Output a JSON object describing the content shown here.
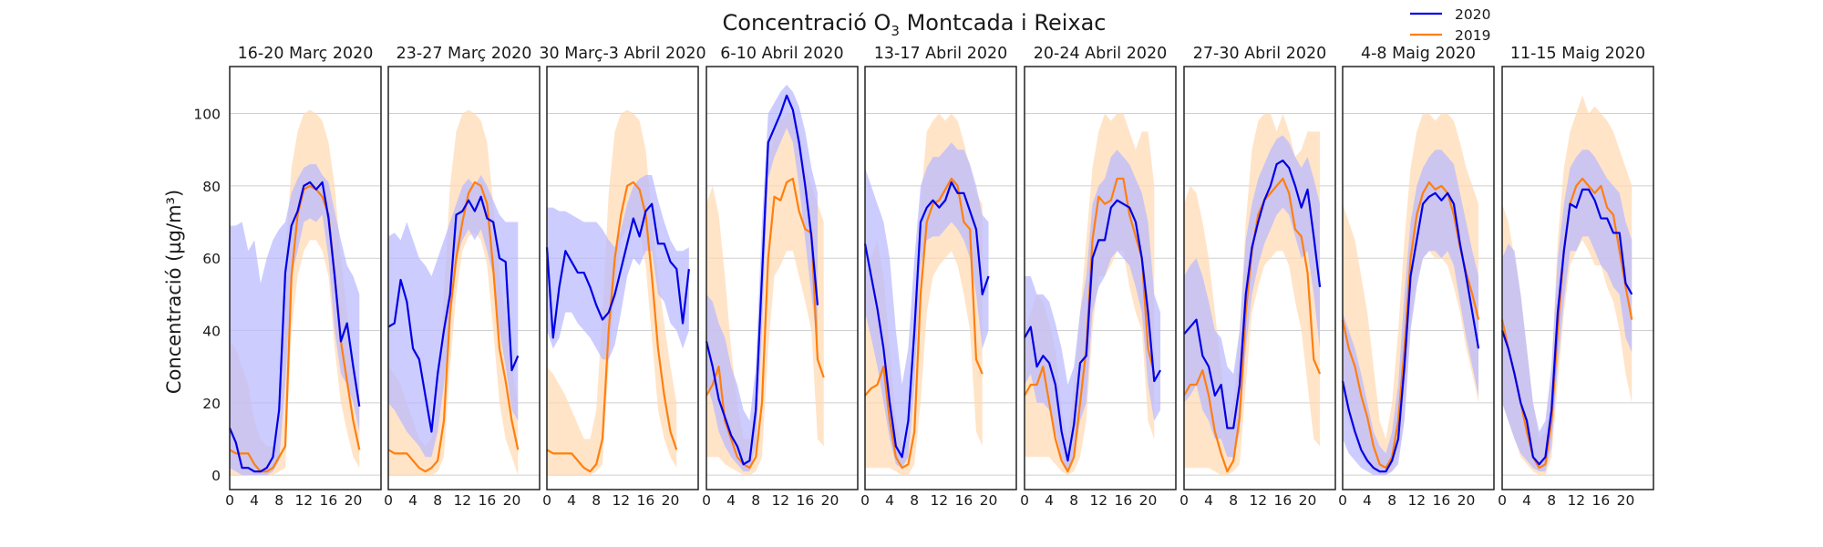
{
  "title_main": "Concentració O",
  "title_sub": "3",
  "title_rest": " Montcada i Reixac",
  "ylabel": "Concentració (µg/m³)",
  "legend": [
    {
      "label": "2020",
      "color": "#0000e6"
    },
    {
      "label": "2019",
      "color": "#ff7f0e"
    }
  ],
  "colors": {
    "s2020": "#0000e6",
    "s2019": "#ff7f0e",
    "band2020": "#b9b9ff",
    "band2019": "#ffd9b3"
  },
  "chart_data": {
    "type": "line",
    "ylim": [
      -4,
      113
    ],
    "xlim": [
      0,
      24.5
    ],
    "yticks": [
      0,
      20,
      40,
      60,
      80,
      100
    ],
    "xticks": [
      0,
      4,
      8,
      12,
      16,
      20
    ],
    "grid": "horizontal",
    "legend_position": "top-right",
    "hours": [
      0,
      1,
      2,
      3,
      4,
      5,
      6,
      7,
      8,
      9,
      10,
      11,
      12,
      13,
      14,
      15,
      16,
      17,
      18,
      19,
      20,
      21,
      22,
      23
    ],
    "panels": [
      {
        "title": "16-20 Març 2020",
        "s2020": [
          13,
          9,
          2,
          2,
          1,
          1,
          2,
          5,
          18,
          56,
          69,
          73,
          80,
          81,
          79,
          81,
          71,
          55,
          37,
          42,
          30,
          19
        ],
        "s2019": [
          7,
          6,
          6,
          6,
          3,
          1,
          1,
          2,
          5,
          8,
          55,
          72,
          79,
          80,
          79,
          77,
          72,
          55,
          37,
          26,
          15,
          7
        ],
        "band2020_hi": [
          69,
          69,
          70,
          62,
          65,
          53,
          60,
          65,
          68,
          70,
          78,
          82,
          85,
          86,
          86,
          83,
          81,
          73,
          65,
          58,
          55,
          50
        ],
        "band2020_lo": [
          2,
          1,
          0,
          0,
          0,
          0,
          0,
          1,
          4,
          25,
          55,
          62,
          70,
          71,
          70,
          72,
          60,
          40,
          28,
          25,
          20,
          12
        ],
        "band2019_hi": [
          37,
          35,
          30,
          25,
          15,
          10,
          8,
          8,
          12,
          60,
          85,
          95,
          100,
          101,
          100,
          98,
          92,
          80,
          60,
          45,
          30,
          20
        ],
        "band2019_lo": [
          0,
          0,
          0,
          0,
          0,
          0,
          0,
          0,
          1,
          2,
          40,
          55,
          62,
          65,
          65,
          62,
          55,
          35,
          20,
          12,
          5,
          2
        ]
      },
      {
        "title": "23-27 Març 2020",
        "s2020": [
          41,
          42,
          54,
          48,
          35,
          32,
          22,
          12,
          28,
          40,
          50,
          72,
          73,
          76,
          73,
          77,
          71,
          70,
          60,
          59,
          29,
          33
        ],
        "s2019": [
          7,
          6,
          6,
          6,
          4,
          2,
          1,
          2,
          4,
          15,
          45,
          60,
          70,
          78,
          81,
          80,
          75,
          57,
          35,
          26,
          15,
          7
        ],
        "band2020_hi": [
          66,
          67,
          65,
          70,
          65,
          60,
          58,
          55,
          60,
          65,
          70,
          75,
          80,
          82,
          80,
          83,
          80,
          76,
          72,
          70,
          70,
          70
        ],
        "band2020_lo": [
          20,
          18,
          15,
          12,
          10,
          8,
          5,
          5,
          12,
          25,
          40,
          60,
          65,
          68,
          65,
          68,
          62,
          55,
          40,
          30,
          18,
          15
        ],
        "band2019_hi": [
          30,
          28,
          25,
          20,
          15,
          10,
          8,
          10,
          20,
          50,
          80,
          95,
          100,
          101,
          100,
          98,
          92,
          75,
          55,
          45,
          30,
          20
        ],
        "band2019_lo": [
          0,
          0,
          0,
          0,
          0,
          0,
          0,
          0,
          1,
          5,
          30,
          50,
          62,
          66,
          67,
          65,
          58,
          40,
          20,
          10,
          5,
          0
        ]
      },
      {
        "title": "30 Març-3 Abril 2020",
        "s2020": [
          63,
          38,
          52,
          62,
          59,
          56,
          56,
          52,
          47,
          43,
          45,
          50,
          57,
          64,
          71,
          66,
          73,
          75,
          64,
          64,
          59,
          57,
          42,
          57
        ],
        "s2019": [
          7,
          6,
          6,
          6,
          6,
          4,
          2,
          1,
          3,
          10,
          40,
          60,
          72,
          80,
          81,
          79,
          72,
          55,
          35,
          22,
          12,
          7
        ],
        "band2020_hi": [
          74,
          74,
          73,
          73,
          72,
          71,
          70,
          70,
          70,
          68,
          65,
          63,
          68,
          75,
          80,
          82,
          83,
          83,
          76,
          70,
          65,
          62,
          62,
          63
        ],
        "band2020_lo": [
          40,
          35,
          38,
          45,
          45,
          42,
          40,
          38,
          35,
          32,
          32,
          36,
          45,
          55,
          60,
          58,
          62,
          62,
          50,
          48,
          42,
          40,
          35,
          40
        ],
        "band2019_hi": [
          30,
          28,
          25,
          22,
          18,
          14,
          10,
          10,
          18,
          45,
          78,
          95,
          100,
          101,
          100,
          98,
          90,
          72,
          55,
          42,
          30,
          20
        ],
        "band2019_lo": [
          0,
          0,
          0,
          0,
          0,
          0,
          0,
          0,
          1,
          3,
          30,
          50,
          65,
          68,
          70,
          68,
          58,
          38,
          18,
          10,
          5,
          2
        ]
      },
      {
        "title": "6-10 Abril 2020",
        "s2020": [
          37,
          30,
          21,
          16,
          11,
          8,
          3,
          4,
          18,
          55,
          92,
          96,
          100,
          105,
          101,
          92,
          80,
          66,
          47
        ],
        "s2019": [
          22,
          25,
          30,
          15,
          10,
          5,
          3,
          2,
          5,
          20,
          60,
          77,
          76,
          81,
          82,
          73,
          68,
          67,
          32,
          27
        ],
        "band2020_hi": [
          50,
          48,
          42,
          38,
          30,
          25,
          18,
          15,
          30,
          70,
          100,
          103,
          106,
          108,
          106,
          102,
          95,
          85,
          78
        ],
        "band2020_lo": [
          25,
          20,
          12,
          8,
          5,
          3,
          1,
          1,
          8,
          40,
          82,
          88,
          92,
          96,
          92,
          80,
          65,
          50,
          35
        ],
        "band2019_hi": [
          75,
          80,
          72,
          55,
          35,
          20,
          10,
          10,
          20,
          50,
          85,
          95,
          98,
          100,
          100,
          95,
          85,
          80,
          75,
          70
        ],
        "band2019_lo": [
          5,
          5,
          5,
          3,
          2,
          1,
          0,
          0,
          1,
          5,
          35,
          55,
          58,
          62,
          62,
          55,
          48,
          40,
          10,
          8
        ]
      },
      {
        "title": "13-17 Abril 2020",
        "s2020": [
          64,
          55,
          46,
          35,
          20,
          8,
          5,
          15,
          40,
          70,
          74,
          76,
          74,
          76,
          81,
          78,
          78,
          73,
          68,
          50,
          55
        ],
        "s2019": [
          22,
          24,
          25,
          30,
          15,
          5,
          2,
          3,
          12,
          50,
          70,
          75,
          76,
          79,
          82,
          80,
          70,
          68,
          32,
          28
        ],
        "band2020_hi": [
          85,
          80,
          75,
          70,
          60,
          40,
          25,
          35,
          60,
          80,
          85,
          88,
          88,
          90,
          92,
          90,
          90,
          86,
          80,
          72,
          70
        ],
        "band2020_lo": [
          45,
          38,
          30,
          20,
          10,
          3,
          2,
          5,
          25,
          58,
          65,
          66,
          66,
          68,
          70,
          68,
          65,
          60,
          50,
          35,
          40
        ],
        "band2019_hi": [
          55,
          60,
          65,
          55,
          35,
          15,
          8,
          10,
          30,
          75,
          95,
          98,
          100,
          98,
          100,
          98,
          92,
          85,
          78,
          75
        ],
        "band2019_lo": [
          2,
          2,
          2,
          2,
          2,
          1,
          0,
          0,
          3,
          20,
          45,
          55,
          58,
          60,
          62,
          58,
          50,
          40,
          12,
          8
        ]
      },
      {
        "title": "20-24 Abril 2020",
        "s2020": [
          38,
          41,
          30,
          33,
          31,
          25,
          12,
          4,
          14,
          31,
          33,
          60,
          65,
          65,
          74,
          76,
          75,
          74,
          70,
          60,
          45,
          26,
          29
        ],
        "s2019": [
          22,
          25,
          25,
          30,
          20,
          10,
          4,
          1,
          5,
          20,
          35,
          65,
          77,
          75,
          76,
          82,
          82,
          72,
          66,
          60,
          35,
          28
        ],
        "band2020_hi": [
          55,
          55,
          50,
          50,
          48,
          42,
          35,
          25,
          30,
          45,
          55,
          75,
          80,
          82,
          88,
          90,
          88,
          86,
          82,
          78,
          70,
          50,
          45
        ],
        "band2020_lo": [
          25,
          28,
          20,
          20,
          18,
          12,
          5,
          1,
          5,
          15,
          20,
          45,
          52,
          55,
          60,
          62,
          60,
          58,
          52,
          45,
          25,
          15,
          18
        ],
        "band2019_hi": [
          40,
          45,
          50,
          48,
          42,
          35,
          18,
          10,
          25,
          45,
          65,
          85,
          95,
          100,
          98,
          100,
          100,
          95,
          90,
          95,
          95,
          80
        ],
        "band2019_lo": [
          5,
          5,
          5,
          5,
          5,
          3,
          1,
          0,
          1,
          5,
          15,
          40,
          55,
          55,
          58,
          62,
          62,
          52,
          45,
          40,
          15,
          10
        ]
      },
      {
        "title": "27-30 Abril 2020",
        "s2020": [
          39,
          41,
          43,
          33,
          30,
          22,
          25,
          13,
          13,
          25,
          50,
          63,
          70,
          76,
          80,
          86,
          87,
          85,
          80,
          74,
          79,
          66,
          52
        ],
        "s2019": [
          22,
          25,
          25,
          29,
          22,
          12,
          6,
          1,
          4,
          16,
          45,
          62,
          72,
          76,
          78,
          80,
          82,
          78,
          68,
          66,
          56,
          32,
          28
        ],
        "band2020_hi": [
          55,
          58,
          60,
          55,
          48,
          40,
          38,
          30,
          28,
          40,
          65,
          75,
          82,
          86,
          90,
          93,
          94,
          92,
          88,
          85,
          88,
          82,
          75
        ],
        "band2020_lo": [
          20,
          22,
          25,
          18,
          15,
          10,
          10,
          5,
          5,
          12,
          35,
          50,
          58,
          64,
          68,
          72,
          74,
          72,
          66,
          60,
          62,
          50,
          35
        ],
        "band2019_hi": [
          75,
          80,
          78,
          70,
          60,
          45,
          30,
          15,
          20,
          40,
          70,
          90,
          98,
          100,
          100,
          95,
          100,
          95,
          88,
          90,
          95,
          95,
          95
        ],
        "band2019_lo": [
          2,
          2,
          2,
          2,
          2,
          1,
          0,
          0,
          1,
          3,
          25,
          45,
          52,
          58,
          60,
          62,
          62,
          58,
          48,
          40,
          25,
          10,
          8
        ]
      },
      {
        "title": "4-8 Maig 2020",
        "s2020": [
          26,
          18,
          12,
          7,
          4,
          2,
          1,
          1,
          4,
          10,
          30,
          55,
          65,
          75,
          77,
          78,
          76,
          78,
          75,
          64,
          55,
          45,
          35
        ],
        "s2019": [
          43,
          35,
          30,
          22,
          16,
          8,
          3,
          2,
          5,
          15,
          35,
          60,
          72,
          78,
          81,
          79,
          80,
          78,
          72,
          63,
          56,
          50,
          43
        ],
        "band2020_hi": [
          45,
          40,
          35,
          28,
          20,
          12,
          8,
          6,
          12,
          25,
          50,
          70,
          80,
          85,
          88,
          90,
          90,
          88,
          86,
          78,
          70,
          62,
          55
        ],
        "band2020_lo": [
          10,
          6,
          4,
          2,
          1,
          0,
          0,
          0,
          1,
          3,
          15,
          40,
          52,
          60,
          62,
          62,
          60,
          62,
          58,
          48,
          38,
          30,
          22
        ],
        "band2019_hi": [
          75,
          70,
          65,
          55,
          45,
          30,
          15,
          10,
          20,
          40,
          65,
          85,
          95,
          100,
          100,
          98,
          100,
          100,
          98,
          92,
          85,
          80,
          75
        ],
        "band2019_lo": [
          20,
          15,
          10,
          5,
          3,
          1,
          0,
          0,
          1,
          5,
          15,
          40,
          55,
          60,
          62,
          60,
          60,
          58,
          52,
          45,
          35,
          28,
          20
        ]
      },
      {
        "title": "11-15 Maig 2020",
        "s2020": [
          40,
          35,
          28,
          20,
          15,
          5,
          3,
          5,
          18,
          45,
          62,
          75,
          74,
          79,
          79,
          76,
          71,
          71,
          67,
          67,
          53,
          50
        ],
        "s2019": [
          43,
          35,
          28,
          20,
          12,
          5,
          2,
          3,
          15,
          40,
          62,
          75,
          80,
          82,
          80,
          78,
          80,
          74,
          72,
          62,
          52,
          43
        ],
        "band2020_hi": [
          60,
          64,
          62,
          50,
          35,
          20,
          12,
          15,
          30,
          60,
          75,
          85,
          88,
          90,
          90,
          88,
          85,
          82,
          80,
          78,
          70,
          65
        ],
        "band2020_lo": [
          20,
          15,
          10,
          6,
          4,
          2,
          1,
          1,
          8,
          30,
          48,
          62,
          62,
          66,
          66,
          62,
          58,
          56,
          52,
          50,
          38,
          34
        ],
        "band2019_hi": [
          75,
          70,
          60,
          50,
          35,
          20,
          10,
          12,
          30,
          65,
          85,
          95,
          100,
          105,
          100,
          102,
          100,
          98,
          95,
          90,
          85,
          80
        ],
        "band2019_lo": [
          20,
          15,
          10,
          5,
          3,
          1,
          0,
          0,
          5,
          25,
          45,
          58,
          62,
          65,
          62,
          58,
          58,
          52,
          48,
          40,
          28,
          20
        ]
      }
    ]
  }
}
